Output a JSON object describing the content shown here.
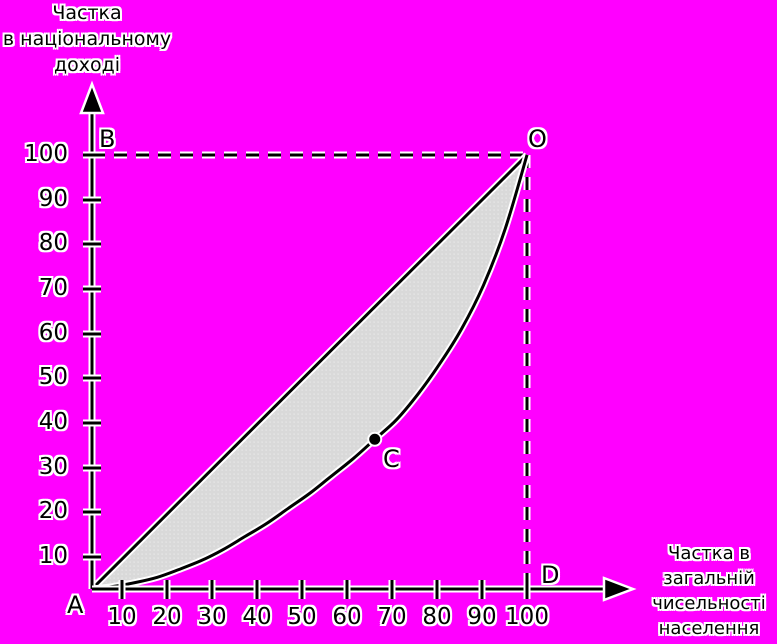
{
  "colors": {
    "background": "#ff00ff",
    "ink": "#000000",
    "halo": "#ffffff",
    "lens_fill": "#d9d9d9",
    "lens_dot": "#ebebeb"
  },
  "y_axis_title": {
    "lines": [
      "Частка",
      "в національному",
      "доході"
    ]
  },
  "x_axis_title": {
    "lines": [
      "Частка в",
      "загальній",
      "чисельності",
      "населення"
    ]
  },
  "point_labels": {
    "A": "A",
    "B": "B",
    "C": "C",
    "D": "D",
    "O": "O"
  },
  "axes": {
    "x": {
      "ticks": [
        "10",
        "20",
        "30",
        "40",
        "50",
        "60",
        "70",
        "80",
        "90",
        "100"
      ]
    },
    "y": {
      "ticks": [
        "10",
        "20",
        "30",
        "40",
        "50",
        "60",
        "70",
        "80",
        "90",
        "100"
      ]
    }
  },
  "chart_data": {
    "type": "line",
    "title": "",
    "xlabel": "Частка в загальній чисельності населення",
    "ylabel": "Частка в національному доході",
    "xlim": [
      0,
      100
    ],
    "ylim": [
      0,
      100
    ],
    "x_ticks": [
      10,
      20,
      30,
      40,
      50,
      60,
      70,
      80,
      90,
      100
    ],
    "y_ticks": [
      10,
      20,
      30,
      40,
      50,
      60,
      70,
      80,
      90,
      100
    ],
    "grid": false,
    "legend": false,
    "series": [
      {
        "name": "line-of-equality",
        "style": "solid",
        "points": [
          [
            0,
            0
          ],
          [
            100,
            100
          ]
        ]
      },
      {
        "name": "lorenz-curve",
        "style": "solid",
        "points": [
          [
            0,
            0
          ],
          [
            5,
            0.6
          ],
          [
            10,
            1.5
          ],
          [
            15,
            2.7
          ],
          [
            20,
            4.5
          ],
          [
            25,
            6.5
          ],
          [
            30,
            9
          ],
          [
            35,
            12
          ],
          [
            40,
            15
          ],
          [
            45,
            18.5
          ],
          [
            50,
            22
          ],
          [
            55,
            26
          ],
          [
            60,
            30
          ],
          [
            65,
            34.5
          ],
          [
            70,
            39
          ],
          [
            75,
            45
          ],
          [
            80,
            52
          ],
          [
            85,
            60
          ],
          [
            90,
            70
          ],
          [
            95,
            83
          ],
          [
            100,
            100
          ]
        ]
      }
    ],
    "area_between_series_fill": "#d9d9d9",
    "guides": [
      {
        "name": "B-O",
        "style": "dashed",
        "from": [
          0,
          100
        ],
        "to": [
          100,
          100
        ]
      },
      {
        "name": "O-D",
        "style": "dashed",
        "from": [
          100,
          100
        ],
        "to": [
          100,
          0
        ]
      }
    ],
    "marked_points": [
      {
        "label": "C",
        "x": 65,
        "y": 34.5
      }
    ],
    "corner_labels": [
      {
        "label": "A",
        "x": 0,
        "y": 0
      },
      {
        "label": "B",
        "x": 0,
        "y": 100
      },
      {
        "label": "O",
        "x": 100,
        "y": 100
      },
      {
        "label": "D",
        "x": 100,
        "y": 0
      }
    ]
  }
}
